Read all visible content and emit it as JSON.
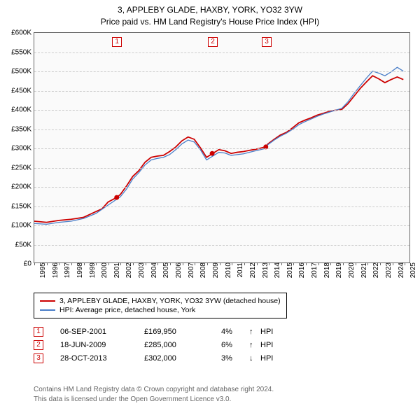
{
  "title": {
    "line1": "3, APPLEBY GLADE, HAXBY, YORK, YO32 3YW",
    "line2": "Price paid vs. HM Land Registry's House Price Index (HPI)"
  },
  "chart": {
    "type": "line",
    "background_color": "#fafafa",
    "grid_color": "#cccccc",
    "border_color": "#666666",
    "x_years": [
      1995,
      1996,
      1997,
      1998,
      1999,
      2000,
      2001,
      2002,
      2003,
      2004,
      2005,
      2006,
      2007,
      2008,
      2009,
      2010,
      2011,
      2012,
      2013,
      2014,
      2015,
      2016,
      2017,
      2018,
      2019,
      2020,
      2021,
      2022,
      2023,
      2024,
      2025
    ],
    "y_ticks": [
      0,
      50000,
      100000,
      150000,
      200000,
      250000,
      300000,
      350000,
      400000,
      450000,
      500000,
      550000,
      600000
    ],
    "y_tick_labels": [
      "£0",
      "£50K",
      "£100K",
      "£150K",
      "£200K",
      "£250K",
      "£300K",
      "£350K",
      "£400K",
      "£450K",
      "£500K",
      "£550K",
      "£600K"
    ],
    "ylim": [
      0,
      600000
    ],
    "xlim": [
      1995,
      2025.5
    ],
    "series": [
      {
        "name": "3, APPLEBY GLADE, HAXBY, YORK, YO32 3YW (detached house)",
        "color": "#cc0000",
        "width": 1.8,
        "points": [
          [
            1995,
            108000
          ],
          [
            1996,
            105000
          ],
          [
            1997,
            110000
          ],
          [
            1998,
            113000
          ],
          [
            1999,
            118000
          ],
          [
            2000,
            133000
          ],
          [
            2000.5,
            140000
          ],
          [
            2001,
            158000
          ],
          [
            2001.7,
            169950
          ],
          [
            2002,
            178000
          ],
          [
            2002.5,
            200000
          ],
          [
            2003,
            225000
          ],
          [
            2003.5,
            240000
          ],
          [
            2004,
            262000
          ],
          [
            2004.5,
            275000
          ],
          [
            2005,
            278000
          ],
          [
            2005.5,
            280000
          ],
          [
            2006,
            290000
          ],
          [
            2006.5,
            302000
          ],
          [
            2007,
            318000
          ],
          [
            2007.5,
            328000
          ],
          [
            2008,
            322000
          ],
          [
            2008.5,
            300000
          ],
          [
            2009,
            275000
          ],
          [
            2009.5,
            285000
          ],
          [
            2010,
            295000
          ],
          [
            2010.5,
            292000
          ],
          [
            2011,
            285000
          ],
          [
            2011.5,
            288000
          ],
          [
            2012,
            290000
          ],
          [
            2012.5,
            293000
          ],
          [
            2013,
            296000
          ],
          [
            2013.8,
            302000
          ],
          [
            2014,
            310000
          ],
          [
            2014.5,
            322000
          ],
          [
            2015,
            333000
          ],
          [
            2015.5,
            340000
          ],
          [
            2016,
            352000
          ],
          [
            2016.5,
            365000
          ],
          [
            2017,
            372000
          ],
          [
            2017.5,
            378000
          ],
          [
            2018,
            385000
          ],
          [
            2018.5,
            390000
          ],
          [
            2019,
            395000
          ],
          [
            2019.5,
            398000
          ],
          [
            2020,
            400000
          ],
          [
            2020.5,
            415000
          ],
          [
            2021,
            435000
          ],
          [
            2021.5,
            455000
          ],
          [
            2022,
            472000
          ],
          [
            2022.5,
            488000
          ],
          [
            2023,
            480000
          ],
          [
            2023.5,
            470000
          ],
          [
            2024,
            478000
          ],
          [
            2024.5,
            485000
          ],
          [
            2025,
            478000
          ]
        ]
      },
      {
        "name": "HPI: Average price, detached house, York",
        "color": "#4a7ec8",
        "width": 1.3,
        "points": [
          [
            1995,
            102000
          ],
          [
            1996,
            100000
          ],
          [
            1997,
            105000
          ],
          [
            1998,
            108000
          ],
          [
            1999,
            115000
          ],
          [
            2000,
            128000
          ],
          [
            2001,
            150000
          ],
          [
            2002,
            172000
          ],
          [
            2002.5,
            192000
          ],
          [
            2003,
            218000
          ],
          [
            2003.5,
            235000
          ],
          [
            2004,
            255000
          ],
          [
            2004.5,
            268000
          ],
          [
            2005,
            272000
          ],
          [
            2005.5,
            275000
          ],
          [
            2006,
            282000
          ],
          [
            2006.5,
            295000
          ],
          [
            2007,
            310000
          ],
          [
            2007.5,
            320000
          ],
          [
            2008,
            315000
          ],
          [
            2008.5,
            295000
          ],
          [
            2009,
            268000
          ],
          [
            2009.5,
            278000
          ],
          [
            2010,
            288000
          ],
          [
            2010.5,
            286000
          ],
          [
            2011,
            280000
          ],
          [
            2011.5,
            282000
          ],
          [
            2012,
            284000
          ],
          [
            2012.5,
            288000
          ],
          [
            2013,
            292000
          ],
          [
            2013.8,
            298000
          ],
          [
            2014,
            308000
          ],
          [
            2014.5,
            320000
          ],
          [
            2015,
            330000
          ],
          [
            2015.5,
            338000
          ],
          [
            2016,
            348000
          ],
          [
            2016.5,
            360000
          ],
          [
            2017,
            368000
          ],
          [
            2017.5,
            375000
          ],
          [
            2018,
            382000
          ],
          [
            2018.5,
            388000
          ],
          [
            2019,
            393000
          ],
          [
            2019.5,
            398000
          ],
          [
            2020,
            403000
          ],
          [
            2020.5,
            420000
          ],
          [
            2021,
            442000
          ],
          [
            2021.5,
            462000
          ],
          [
            2022,
            482000
          ],
          [
            2022.5,
            500000
          ],
          [
            2023,
            495000
          ],
          [
            2023.5,
            488000
          ],
          [
            2024,
            498000
          ],
          [
            2024.5,
            510000
          ],
          [
            2025,
            500000
          ]
        ]
      }
    ],
    "markers": [
      {
        "n": "1",
        "x": 2001.7,
        "color": "#cc0000"
      },
      {
        "n": "2",
        "x": 2009.46,
        "color": "#cc0000"
      },
      {
        "n": "3",
        "x": 2013.82,
        "color": "#cc0000"
      }
    ],
    "sale_points": [
      {
        "x": 2001.7,
        "y": 169950,
        "color": "#cc0000"
      },
      {
        "x": 2009.46,
        "y": 285000,
        "color": "#cc0000"
      },
      {
        "x": 2013.82,
        "y": 302000,
        "color": "#cc0000"
      }
    ]
  },
  "legend": {
    "items": [
      {
        "color": "#cc0000",
        "label": "3, APPLEBY GLADE, HAXBY, YORK, YO32 3YW (detached house)"
      },
      {
        "color": "#4a7ec8",
        "label": "HPI: Average price, detached house, York"
      }
    ]
  },
  "transactions": [
    {
      "n": "1",
      "color": "#cc0000",
      "date": "06-SEP-2001",
      "price": "£169,950",
      "pct": "4%",
      "arrow": "↑",
      "hpi": "HPI"
    },
    {
      "n": "2",
      "color": "#cc0000",
      "date": "18-JUN-2009",
      "price": "£285,000",
      "pct": "6%",
      "arrow": "↑",
      "hpi": "HPI"
    },
    {
      "n": "3",
      "color": "#cc0000",
      "date": "28-OCT-2013",
      "price": "£302,000",
      "pct": "3%",
      "arrow": "↓",
      "hpi": "HPI"
    }
  ],
  "footer": {
    "line1": "Contains HM Land Registry data © Crown copyright and database right 2024.",
    "line2": "This data is licensed under the Open Government Licence v3.0."
  }
}
